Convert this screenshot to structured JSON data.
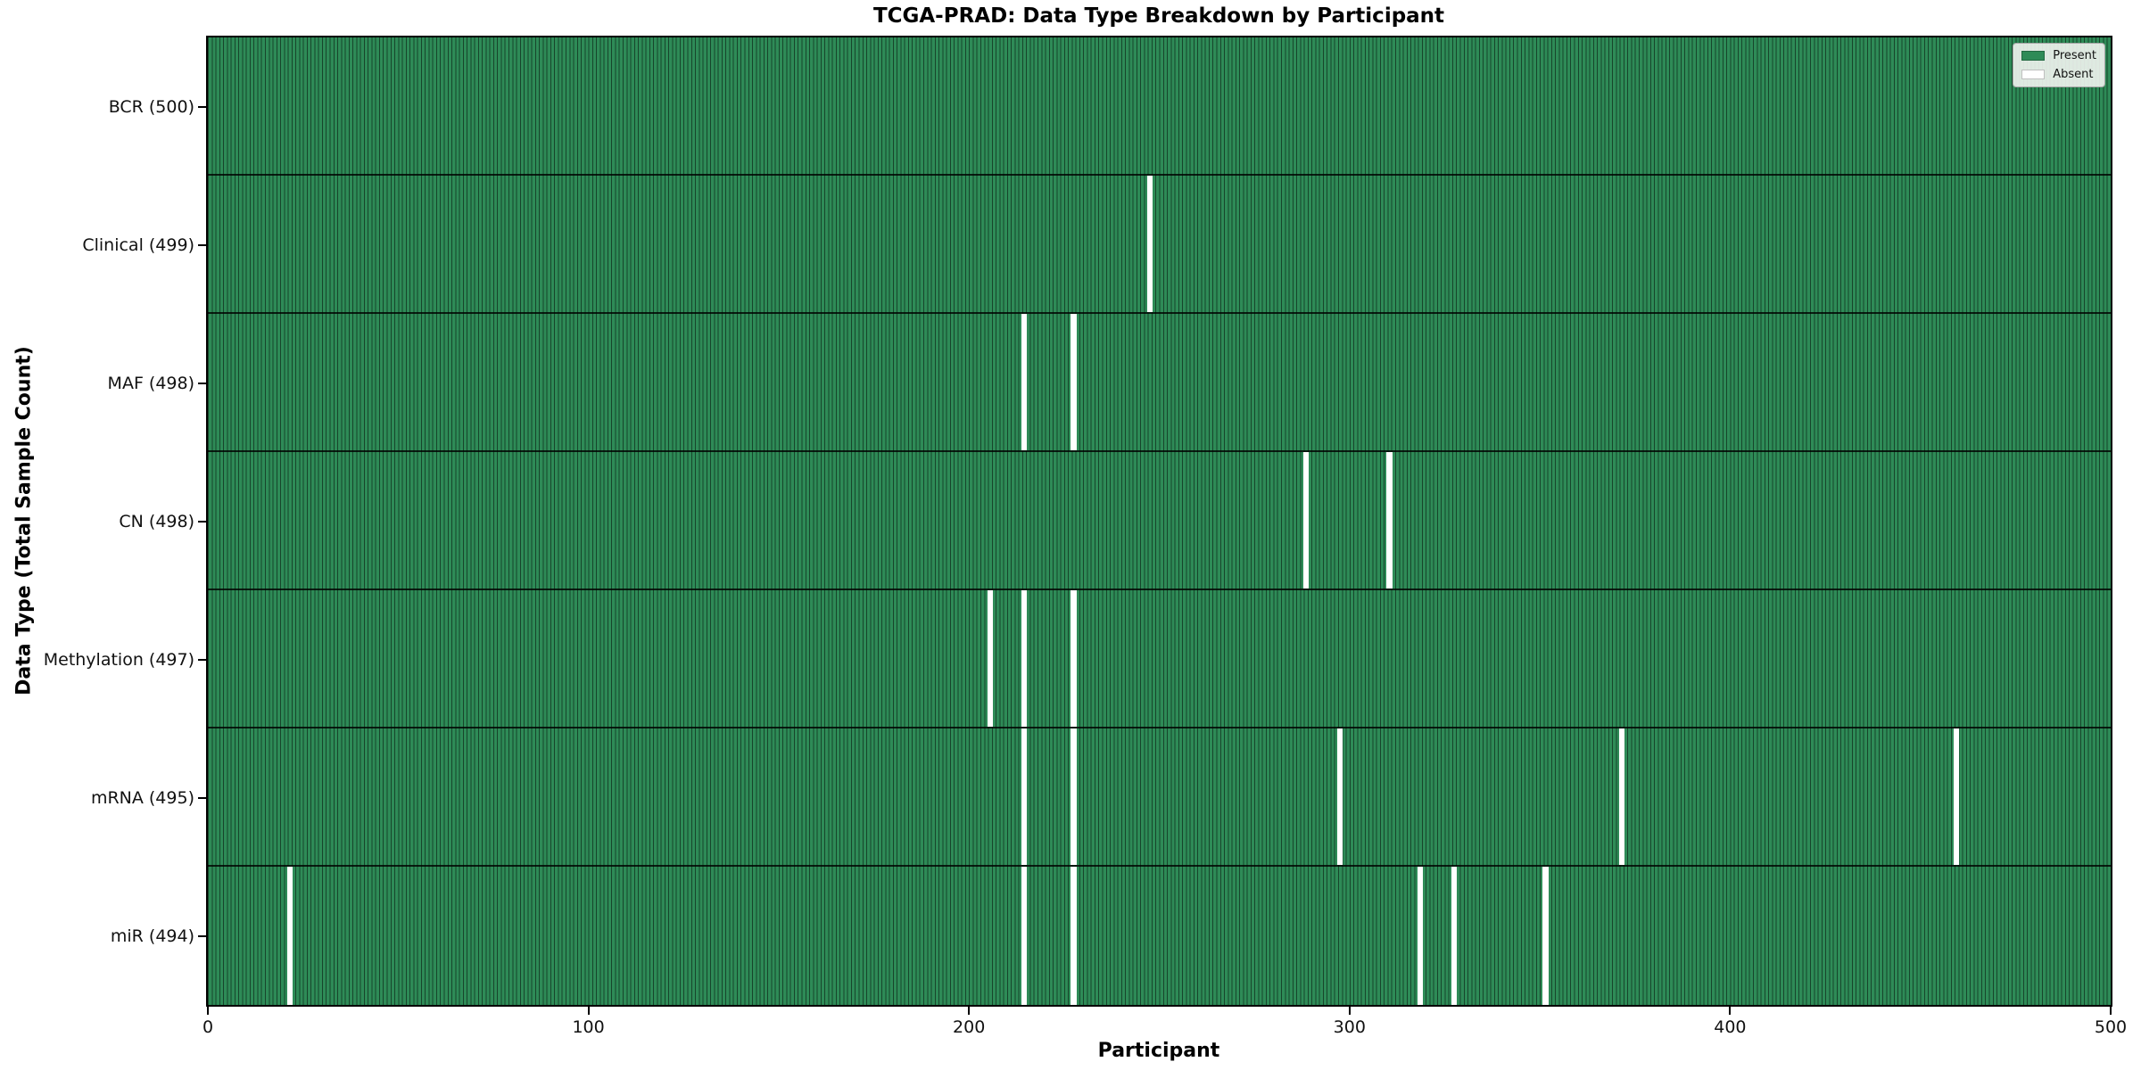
{
  "chart_data": {
    "type": "heatmap",
    "title": "TCGA-PRAD: Data Type Breakdown by Participant",
    "xlabel": "Participant",
    "ylabel": "Data Type (Total Sample Count)",
    "x_range": [
      0,
      500
    ],
    "x_ticks": [
      0,
      100,
      200,
      300,
      400,
      500
    ],
    "n_participants": 500,
    "grid": false,
    "colors": {
      "present": "#2e8b57",
      "absent": "#ffffff",
      "bar_edge": "rgba(0,0,0,0.5)",
      "row_divider": "rgba(0,0,0,0.8)",
      "spine": "#000000",
      "legend_bg": "#f2f4f1"
    },
    "legend": {
      "position": "upper right",
      "entries": [
        {
          "label": "Present",
          "color": "#2e8b57"
        },
        {
          "label": "Absent",
          "color": "#ffffff"
        }
      ]
    },
    "rows": [
      {
        "data_type": "BCR",
        "label": "BCR (500)",
        "present_count": 500,
        "absent_participants": []
      },
      {
        "data_type": "Clinical",
        "label": "Clinical (499)",
        "present_count": 499,
        "absent_participants": [
          247
        ]
      },
      {
        "data_type": "MAF",
        "label": "MAF (498)",
        "present_count": 498,
        "absent_participants": [
          214,
          227
        ]
      },
      {
        "data_type": "CN",
        "label": "CN (498)",
        "present_count": 498,
        "absent_participants": [
          288,
          310
        ]
      },
      {
        "data_type": "Methylation",
        "label": "Methylation (497)",
        "present_count": 497,
        "absent_participants": [
          205,
          214,
          227
        ]
      },
      {
        "data_type": "mRNA",
        "label": "mRNA (495)",
        "present_count": 495,
        "absent_participants": [
          214,
          227,
          297,
          371,
          459
        ]
      },
      {
        "data_type": "miR",
        "label": "miR (494)",
        "present_count": 494,
        "absent_participants": [
          21,
          214,
          227,
          318,
          327,
          351
        ]
      }
    ]
  }
}
